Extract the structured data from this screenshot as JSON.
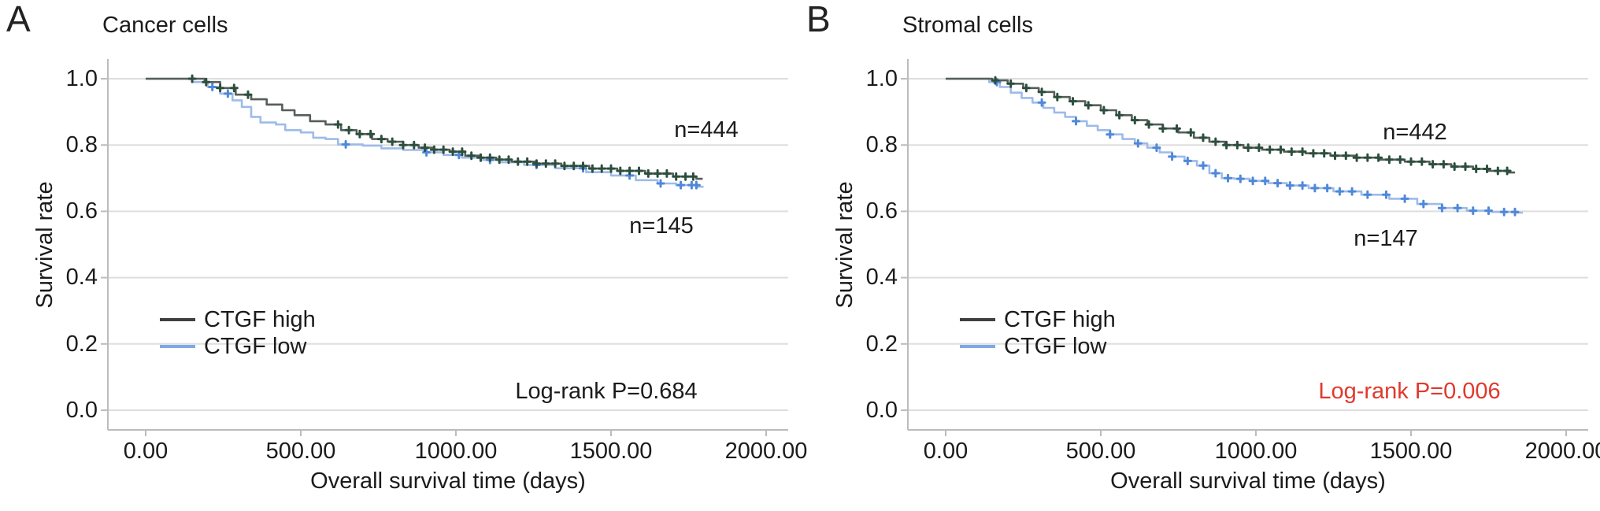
{
  "chart_data": [
    {
      "type": "line",
      "subtype": "kaplan-meier-step",
      "panel_letter": "A",
      "title": "Cancer cells",
      "xlabel": "Overall survival time (days)",
      "ylabel": "Survival rate",
      "xlim": [
        0,
        2000
      ],
      "ylim": [
        0.0,
        1.0
      ],
      "grid": "horizontal",
      "legend_position": "lower-left-inside",
      "x_tick_values": [
        0,
        500,
        1000,
        1500,
        2000
      ],
      "x_tick_labels": [
        "0.00",
        "500.00",
        "1000.00",
        "1500.00",
        "2000.00"
      ],
      "y_tick_values": [
        1.0,
        0.8,
        0.6,
        0.4,
        0.2,
        0.0
      ],
      "y_tick_labels": [
        "1.0",
        "0.8",
        "0.6",
        "0.4",
        "0.2",
        "0.0"
      ],
      "annotation": {
        "text": "Log-rank P=0.684",
        "color": "#1b1b1b"
      },
      "series": [
        {
          "name": "CTGF high",
          "n_label": "n=444",
          "line_color": "#555e59",
          "censor_color": "#2c4e3d",
          "legend_color": "#3f3f3f",
          "points": [
            [
              0,
              1.0
            ],
            [
              140,
              1.0
            ],
            [
              190,
              0.99
            ],
            [
              240,
              0.972
            ],
            [
              290,
              0.952
            ],
            [
              340,
              0.938
            ],
            [
              390,
              0.922
            ],
            [
              440,
              0.905
            ],
            [
              480,
              0.89
            ],
            [
              530,
              0.872
            ],
            [
              580,
              0.862
            ],
            [
              630,
              0.845
            ],
            [
              680,
              0.833
            ],
            [
              730,
              0.818
            ],
            [
              780,
              0.81
            ],
            [
              830,
              0.8
            ],
            [
              880,
              0.792
            ],
            [
              930,
              0.786
            ],
            [
              980,
              0.78
            ],
            [
              1030,
              0.768
            ],
            [
              1080,
              0.762
            ],
            [
              1130,
              0.756
            ],
            [
              1180,
              0.75
            ],
            [
              1260,
              0.744
            ],
            [
              1340,
              0.737
            ],
            [
              1430,
              0.729
            ],
            [
              1520,
              0.722
            ],
            [
              1610,
              0.714
            ],
            [
              1700,
              0.705
            ],
            [
              1775,
              0.698
            ]
          ],
          "censor_times": [
            150,
            195,
            240,
            285,
            330,
            620,
            655,
            690,
            725,
            760,
            795,
            830,
            865,
            900,
            930,
            960,
            990,
            1020,
            1050,
            1080,
            1110,
            1140,
            1170,
            1200,
            1230,
            1260,
            1290,
            1320,
            1350,
            1380,
            1410,
            1440,
            1470,
            1500,
            1530,
            1560,
            1590,
            1620,
            1650,
            1680,
            1710,
            1740,
            1765
          ]
        },
        {
          "name": "CTGF low",
          "n_label": "n=145",
          "line_color": "#9dbbea",
          "censor_color": "#4f88d8",
          "legend_color": "#7fa9e4",
          "points": [
            [
              0,
              1.0
            ],
            [
              150,
              0.99
            ],
            [
              200,
              0.975
            ],
            [
              240,
              0.955
            ],
            [
              280,
              0.935
            ],
            [
              310,
              0.915
            ],
            [
              340,
              0.885
            ],
            [
              370,
              0.868
            ],
            [
              420,
              0.862
            ],
            [
              450,
              0.845
            ],
            [
              500,
              0.838
            ],
            [
              540,
              0.822
            ],
            [
              580,
              0.818
            ],
            [
              620,
              0.802
            ],
            [
              700,
              0.798
            ],
            [
              760,
              0.79
            ],
            [
              830,
              0.785
            ],
            [
              900,
              0.778
            ],
            [
              960,
              0.77
            ],
            [
              1020,
              0.762
            ],
            [
              1080,
              0.755
            ],
            [
              1140,
              0.748
            ],
            [
              1220,
              0.74
            ],
            [
              1320,
              0.73
            ],
            [
              1420,
              0.718
            ],
            [
              1500,
              0.708
            ],
            [
              1580,
              0.694
            ],
            [
              1650,
              0.684
            ],
            [
              1710,
              0.679
            ],
            [
              1778,
              0.674
            ]
          ],
          "censor_times": [
            215,
            265,
            645,
            905,
            1010,
            1110,
            1260,
            1410,
            1560,
            1660,
            1725,
            1760,
            1775
          ]
        }
      ]
    },
    {
      "type": "line",
      "subtype": "kaplan-meier-step",
      "panel_letter": "B",
      "title": "Stromal cells",
      "xlabel": "Overall survival time (days)",
      "ylabel": "Survival rate",
      "xlim": [
        0,
        2000
      ],
      "ylim": [
        0.0,
        1.0
      ],
      "grid": "horizontal",
      "legend_position": "lower-left-inside",
      "x_tick_values": [
        0,
        500,
        1000,
        1500,
        2000
      ],
      "x_tick_labels": [
        "0.00",
        "500.00",
        "1000.00",
        "1500.00",
        "2000.00"
      ],
      "y_tick_values": [
        1.0,
        0.8,
        0.6,
        0.4,
        0.2,
        0.0
      ],
      "y_tick_labels": [
        "1.0",
        "0.8",
        "0.6",
        "0.4",
        "0.2",
        "0.0"
      ],
      "annotation": {
        "text": "Log-rank P=0.006",
        "color": "#e0392d"
      },
      "series": [
        {
          "name": "CTGF high",
          "n_label": "n=442",
          "line_color": "#555e59",
          "censor_color": "#2c4e3d",
          "legend_color": "#3f3f3f",
          "points": [
            [
              0,
              1.0
            ],
            [
              150,
              0.995
            ],
            [
              200,
              0.985
            ],
            [
              250,
              0.972
            ],
            [
              300,
              0.96
            ],
            [
              350,
              0.945
            ],
            [
              400,
              0.932
            ],
            [
              450,
              0.92
            ],
            [
              500,
              0.905
            ],
            [
              550,
              0.89
            ],
            [
              600,
              0.875
            ],
            [
              650,
              0.862
            ],
            [
              700,
              0.85
            ],
            [
              750,
              0.838
            ],
            [
              800,
              0.822
            ],
            [
              850,
              0.81
            ],
            [
              900,
              0.8
            ],
            [
              960,
              0.792
            ],
            [
              1020,
              0.786
            ],
            [
              1090,
              0.78
            ],
            [
              1160,
              0.775
            ],
            [
              1240,
              0.768
            ],
            [
              1320,
              0.762
            ],
            [
              1400,
              0.756
            ],
            [
              1480,
              0.75
            ],
            [
              1560,
              0.742
            ],
            [
              1630,
              0.735
            ],
            [
              1700,
              0.728
            ],
            [
              1750,
              0.722
            ],
            [
              1815,
              0.717
            ]
          ],
          "censor_times": [
            160,
            210,
            260,
            310,
            360,
            410,
            460,
            510,
            560,
            610,
            655,
            700,
            745,
            790,
            830,
            870,
            905,
            940,
            975,
            1010,
            1045,
            1080,
            1115,
            1150,
            1185,
            1220,
            1255,
            1290,
            1325,
            1360,
            1395,
            1430,
            1465,
            1500,
            1535,
            1570,
            1605,
            1640,
            1675,
            1710,
            1745,
            1780,
            1810
          ]
        },
        {
          "name": "CTGF low",
          "n_label": "n=147",
          "line_color": "#9dbbea",
          "censor_color": "#4f88d8",
          "legend_color": "#7fa9e4",
          "points": [
            [
              0,
              1.0
            ],
            [
              140,
              0.99
            ],
            [
              175,
              0.975
            ],
            [
              210,
              0.958
            ],
            [
              245,
              0.942
            ],
            [
              280,
              0.928
            ],
            [
              315,
              0.912
            ],
            [
              350,
              0.898
            ],
            [
              385,
              0.885
            ],
            [
              420,
              0.872
            ],
            [
              455,
              0.858
            ],
            [
              490,
              0.845
            ],
            [
              530,
              0.832
            ],
            [
              570,
              0.818
            ],
            [
              610,
              0.805
            ],
            [
              650,
              0.792
            ],
            [
              690,
              0.778
            ],
            [
              730,
              0.765
            ],
            [
              770,
              0.752
            ],
            [
              810,
              0.738
            ],
            [
              850,
              0.715
            ],
            [
              890,
              0.7
            ],
            [
              930,
              0.698
            ],
            [
              980,
              0.692
            ],
            [
              1040,
              0.685
            ],
            [
              1100,
              0.678
            ],
            [
              1170,
              0.67
            ],
            [
              1250,
              0.66
            ],
            [
              1340,
              0.65
            ],
            [
              1430,
              0.638
            ],
            [
              1520,
              0.622
            ],
            [
              1600,
              0.61
            ],
            [
              1680,
              0.602
            ],
            [
              1760,
              0.598
            ],
            [
              1840,
              0.596
            ]
          ],
          "censor_times": [
            165,
            310,
            420,
            530,
            620,
            680,
            730,
            780,
            830,
            870,
            910,
            950,
            990,
            1030,
            1070,
            1110,
            1150,
            1190,
            1230,
            1270,
            1310,
            1360,
            1420,
            1480,
            1540,
            1600,
            1650,
            1700,
            1750,
            1800,
            1835
          ]
        }
      ]
    }
  ]
}
